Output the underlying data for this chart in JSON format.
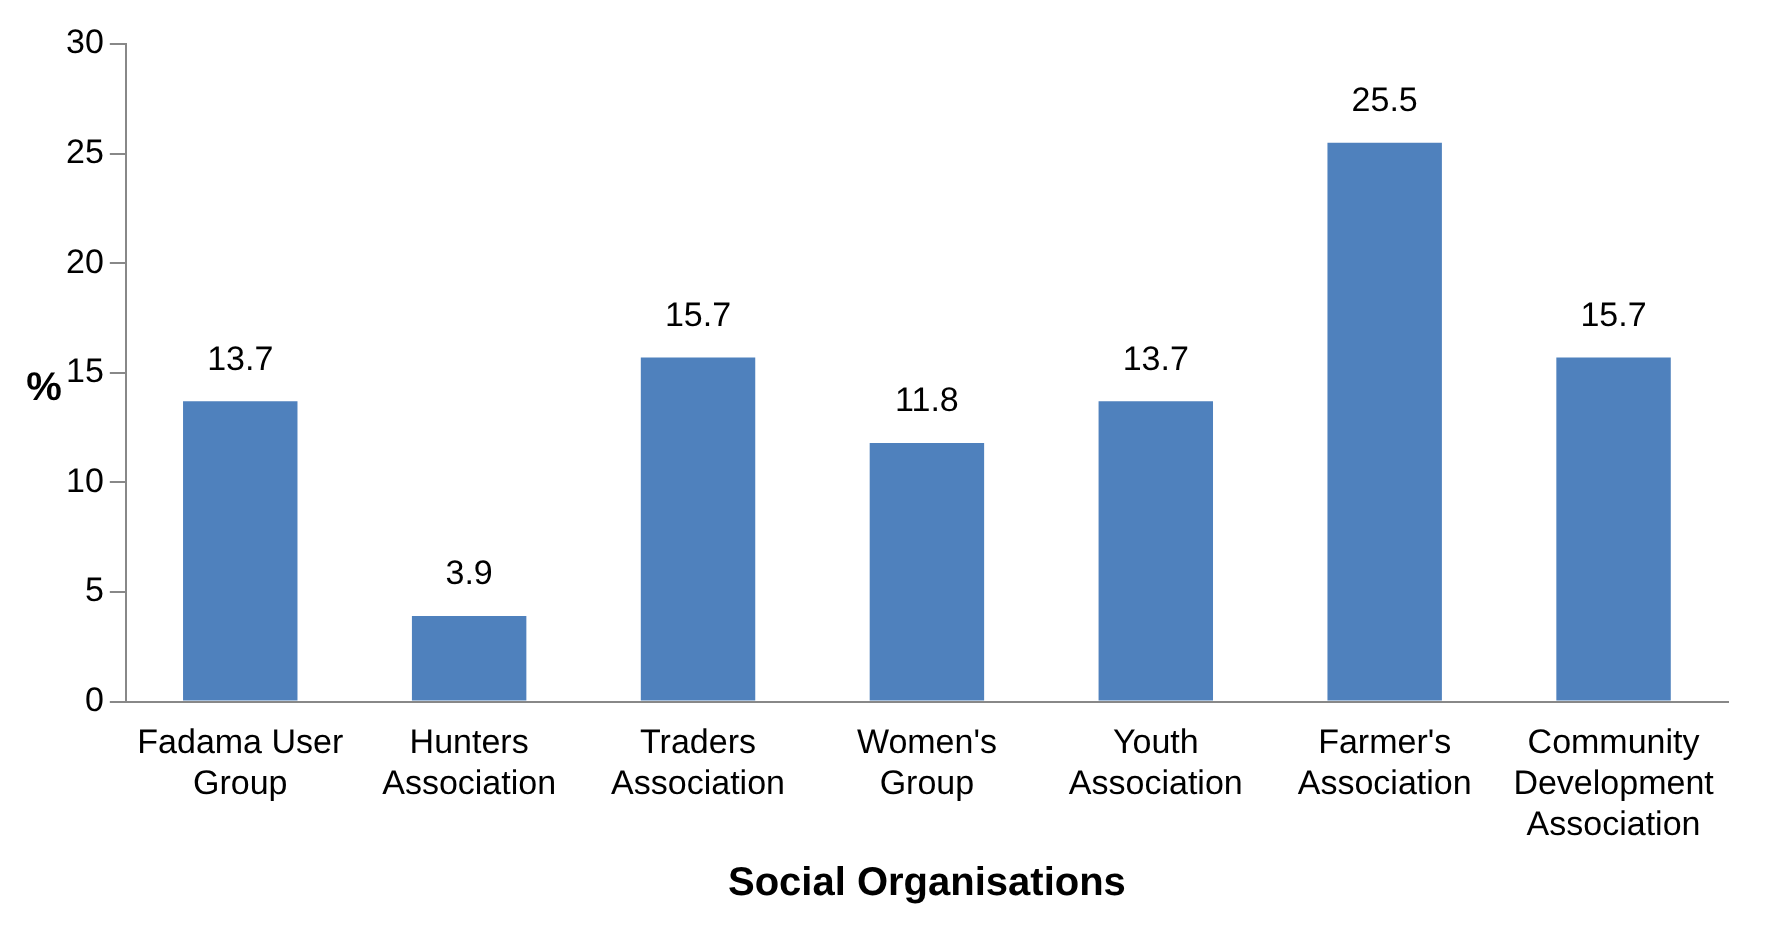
{
  "chart_data": {
    "type": "bar",
    "xlabel": "Social Organisations",
    "ylabel": "%",
    "categories": [
      "Fadama User Group",
      "Hunters Association",
      "Traders Association",
      "Women's Group",
      "Youth Association",
      "Farmer's Association",
      "Community Development Association"
    ],
    "values": [
      13.7,
      3.9,
      15.7,
      11.8,
      13.7,
      25.5,
      15.7
    ],
    "color": "#4f81bd",
    "ylim": [
      0,
      30
    ],
    "yticks": [
      0,
      5,
      10,
      15,
      20,
      25,
      30
    ],
    "grid": false,
    "data_labels": true
  }
}
